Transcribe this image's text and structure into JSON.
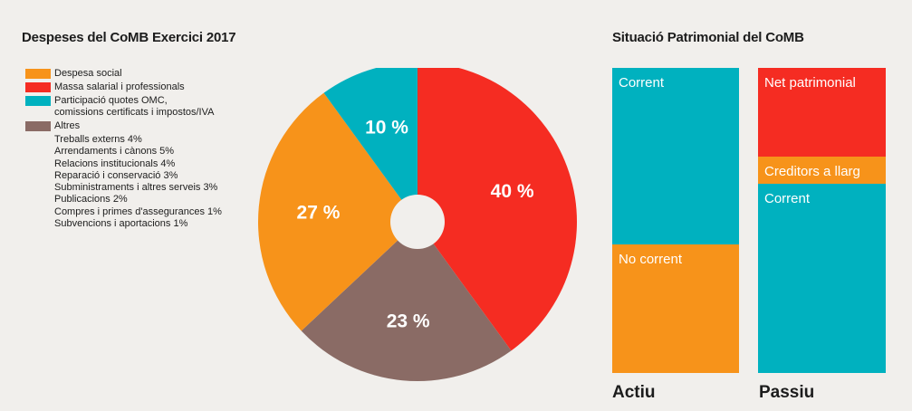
{
  "colors": {
    "orange": "#f7931a",
    "red": "#f52c22",
    "teal": "#00b1bf",
    "brown": "#8a6b65"
  },
  "left": {
    "title": "Despeses del CoMB Exercici 2017",
    "legend": [
      {
        "label": "Despesa social",
        "color": "#f7931a"
      },
      {
        "label": "Massa salarial i professionals",
        "color": "#f52c22"
      },
      {
        "label": "Participació quotes OMC,",
        "label2": "comissions certificats i impostos/IVA",
        "color": "#00b1bf"
      },
      {
        "label": "Altres",
        "color": "#8a6b65"
      }
    ],
    "sub_items": [
      "Treballs externs  4%",
      "Arrendaments i cànons  5%",
      "Relacions institucionals  4%",
      "Reparació i conservació  3%",
      "Subministraments i altres serveis  3%",
      "Publicacions  2%",
      "Compres i primes d'assegurances  1%",
      "Subvencions i aportacions  1%"
    ]
  },
  "chart_data": [
    {
      "type": "pie",
      "title": "Despeses del CoMB Exercici 2017",
      "slices": [
        {
          "name": "Massa salarial i professionals",
          "value": 40,
          "label": "40 %",
          "color": "#f52c22"
        },
        {
          "name": "Altres",
          "value": 23,
          "label": "23 %",
          "color": "#8a6b65"
        },
        {
          "name": "Despesa social",
          "value": 27,
          "label": "27 %",
          "color": "#f7931a"
        },
        {
          "name": "Participació quotes OMC, comissions certificats i impostos/IVA",
          "value": 10,
          "label": "10 %",
          "color": "#00b1bf"
        }
      ]
    },
    {
      "type": "bar",
      "title": "Situació Patrimonial del CoMB",
      "stacked": true,
      "categories": [
        "Actiu",
        "Passiu"
      ],
      "series": [
        {
          "category": "Actiu",
          "segments": [
            {
              "name": "Corrent",
              "value": 58,
              "color": "#00b1bf"
            },
            {
              "name": "No corrent",
              "value": 42,
              "color": "#f7931a"
            }
          ]
        },
        {
          "category": "Passiu",
          "segments": [
            {
              "name": "Net patrimonial",
              "value": 29,
              "color": "#f52c22"
            },
            {
              "name": "Creditors a llarg",
              "value": 9,
              "color": "#f7931a"
            },
            {
              "name": "Corrent",
              "value": 62,
              "color": "#00b1bf"
            }
          ]
        }
      ]
    }
  ]
}
